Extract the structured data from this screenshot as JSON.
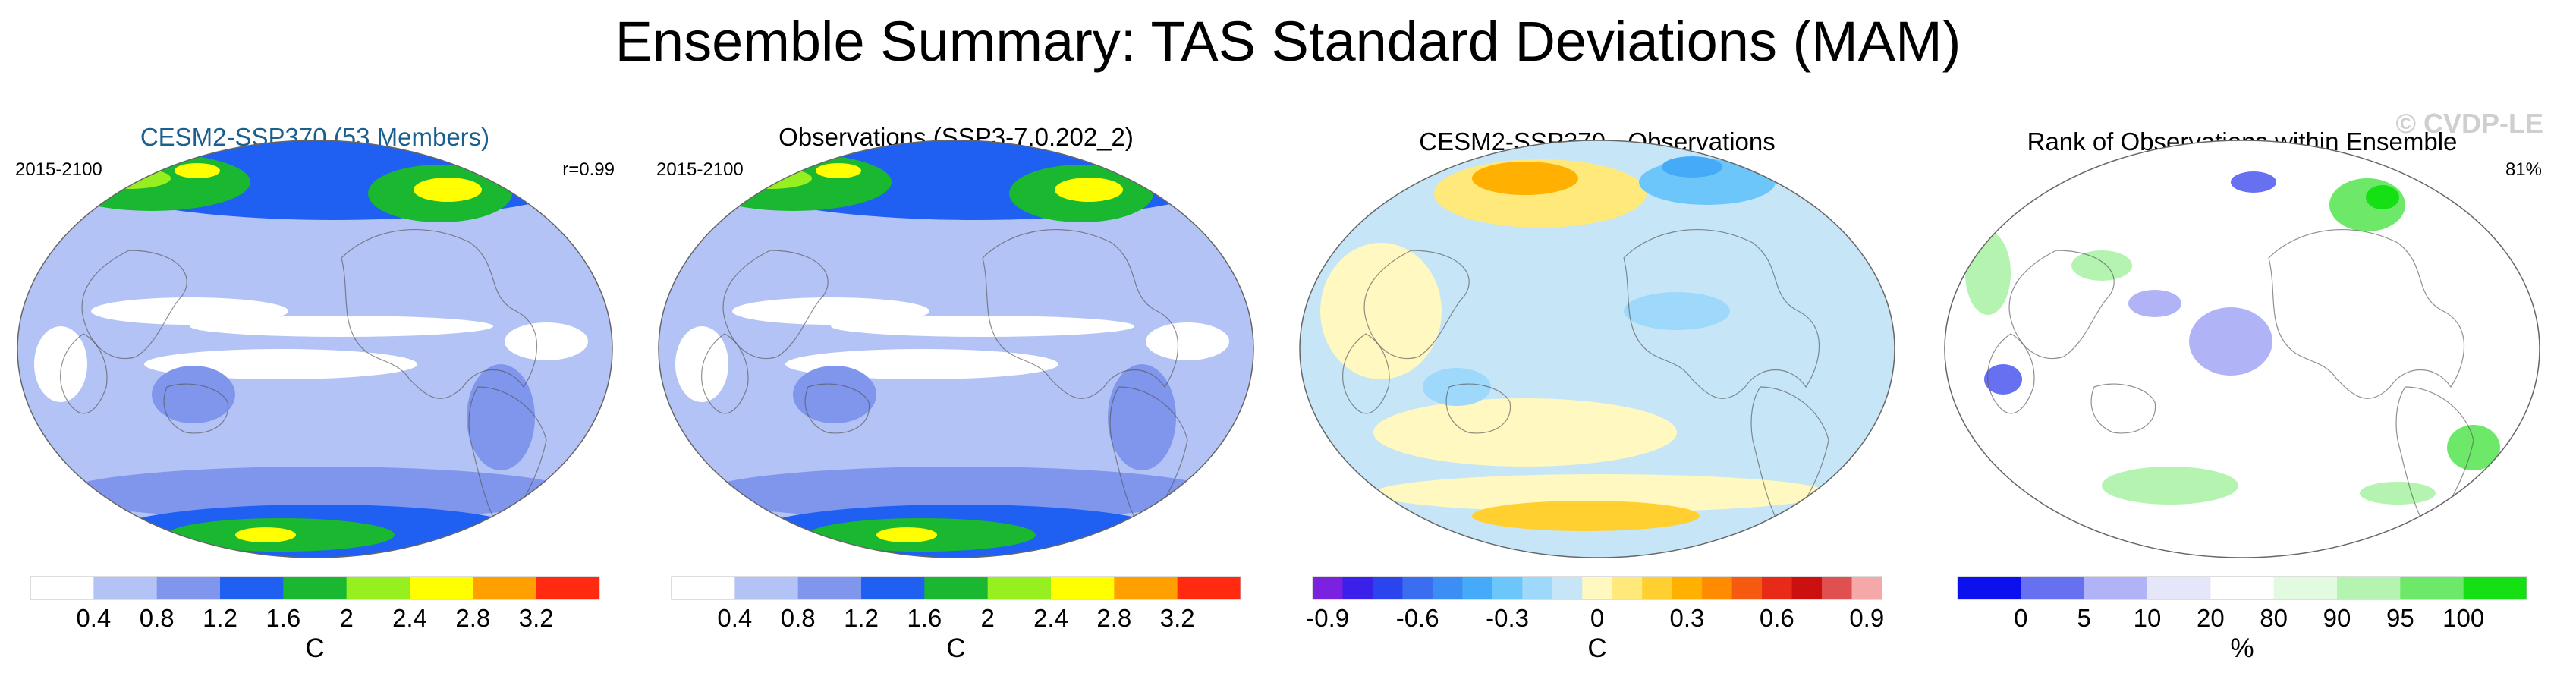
{
  "title": "Ensemble Summary: TAS Standard Deviations (MAM)",
  "watermark": "© CVDP-LE",
  "chart_data": [
    {
      "type": "heatmap",
      "title": "CESM2-SSP370 (53 Members)",
      "left_label": "2015-2100",
      "right_label": "r=0.99",
      "colorbar": {
        "unit": "C",
        "tick_labels": [
          "0.4",
          "0.8",
          "1.2",
          "1.6",
          "2",
          "2.4",
          "2.8",
          "3.2"
        ],
        "colors": [
          "#ffffff",
          "#b4c3f5",
          "#7f96ec",
          "#1f5ff2",
          "#19b830",
          "#96f020",
          "#ffff00",
          "#ff9f00",
          "#ff2a10"
        ]
      }
    },
    {
      "type": "heatmap",
      "title": "Observations (SSP3-7.0.202_2)",
      "left_label": "2015-2100",
      "right_label": "",
      "colorbar": {
        "unit": "C",
        "tick_labels": [
          "0.4",
          "0.8",
          "1.2",
          "1.6",
          "2",
          "2.4",
          "2.8",
          "3.2"
        ],
        "colors": [
          "#ffffff",
          "#b4c3f5",
          "#7f96ec",
          "#1f5ff2",
          "#19b830",
          "#96f020",
          "#ffff00",
          "#ff9f00",
          "#ff2a10"
        ]
      }
    },
    {
      "type": "heatmap",
      "title": "CESM2-SSP370 - Observations",
      "left_label": "",
      "right_label": "",
      "colorbar": {
        "unit": "C",
        "tick_labels": [
          "-0.9",
          "-0.6",
          "-0.3",
          "0",
          "0.3",
          "0.6",
          "0.9"
        ],
        "colors": [
          "#7a22e0",
          "#3a20e8",
          "#2a44ee",
          "#3a6df0",
          "#3c8ef5",
          "#45aaf8",
          "#6cc6fa",
          "#9ed8fb",
          "#c6e6f7",
          "#fff8c0",
          "#ffe97a",
          "#ffd030",
          "#ffb000",
          "#ff8c00",
          "#f55a10",
          "#e82a18",
          "#cc1010",
          "#e05050",
          "#f5a8a8"
        ]
      }
    },
    {
      "type": "heatmap",
      "title": "Rank of Observations within Ensemble",
      "left_label": "",
      "right_label": "81%",
      "colorbar": {
        "unit": "%",
        "tick_labels": [
          "0",
          "5",
          "10",
          "20",
          "80",
          "90",
          "95",
          "100"
        ],
        "colors": [
          "#0a10ee",
          "#6870f2",
          "#b0b4f6",
          "#e6e6fb",
          "#ffffff",
          "#e2fbe0",
          "#b4f4b0",
          "#6ee868",
          "#14e014"
        ]
      }
    }
  ]
}
